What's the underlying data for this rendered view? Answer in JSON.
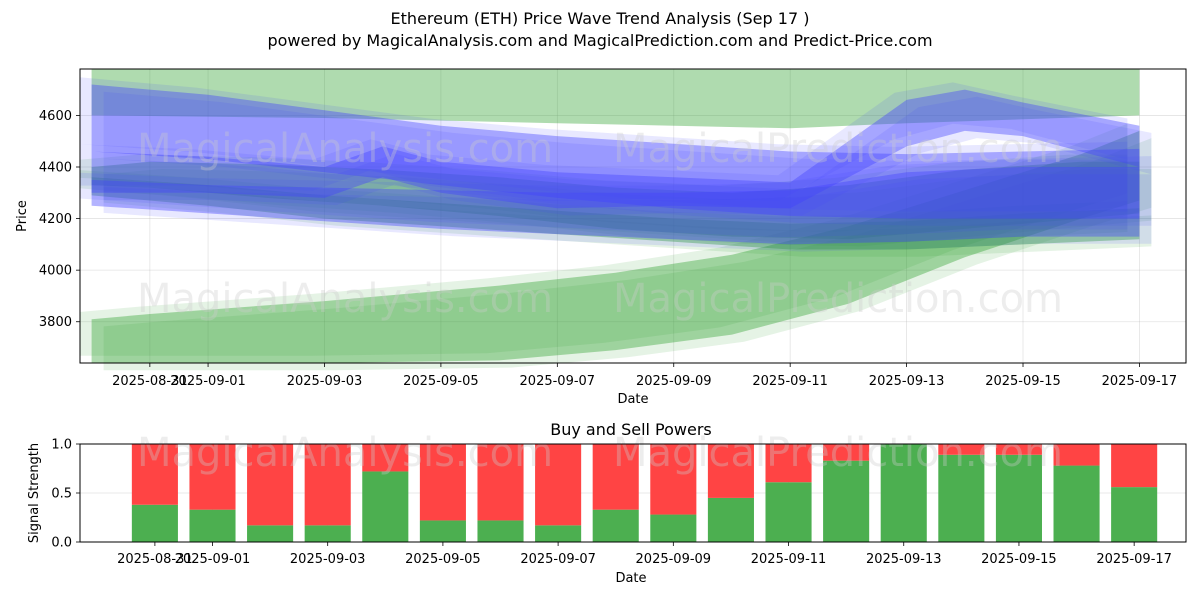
{
  "header": {
    "title": "Ethereum (ETH) Price Wave Trend Analysis (Sep 17 )",
    "subtitle": "powered by MagicalAnalysis.com and MagicalPrediction.com and Predict-Price.com"
  },
  "watermarks": [
    "MagicalAnalysis.com",
    "MagicalPrediction.com"
  ],
  "colors": {
    "green_band": "#2ca02c",
    "blue_band": "#4444ff",
    "buy": "#4caf50",
    "sell": "#ff4444"
  },
  "chart_data": [
    {
      "type": "area",
      "title": "",
      "xlabel": "Date",
      "ylabel": "Price",
      "x_ticks": [
        "2025-08-31",
        "2025-09-01",
        "2025-09-03",
        "2025-09-05",
        "2025-09-07",
        "2025-09-09",
        "2025-09-11",
        "2025-09-13",
        "2025-09-15",
        "2025-09-17"
      ],
      "y_ticks": [
        3800,
        4000,
        4200,
        4400,
        4600
      ],
      "xlim": [
        "2025-08-30",
        "2025-09-17"
      ],
      "ylim": [
        3640,
        4780
      ],
      "grid": true,
      "bands": [
        {
          "color": "green",
          "x": [
            "2025-08-30",
            "2025-09-03",
            "2025-09-07",
            "2025-09-11",
            "2025-09-13",
            "2025-09-17"
          ],
          "upper": [
            4780,
            4780,
            4780,
            4780,
            4780,
            4780
          ],
          "lower": [
            4600,
            4590,
            4570,
            4550,
            4570,
            4600
          ]
        },
        {
          "color": "green",
          "x": [
            "2025-08-30",
            "2025-08-31",
            "2025-09-03",
            "2025-09-06",
            "2025-09-08",
            "2025-09-10",
            "2025-09-12",
            "2025-09-14",
            "2025-09-16",
            "2025-09-17"
          ],
          "upper": [
            3810,
            3830,
            3880,
            3940,
            3990,
            4060,
            4170,
            4310,
            4450,
            4540
          ],
          "lower": [
            3640,
            3640,
            3640,
            3650,
            3690,
            3750,
            3870,
            4050,
            4200,
            4270
          ]
        },
        {
          "color": "green",
          "x": [
            "2025-08-30",
            "2025-08-31",
            "2025-09-02",
            "2025-09-04",
            "2025-09-06",
            "2025-09-08",
            "2025-09-10",
            "2025-09-12",
            "2025-09-14",
            "2025-09-16",
            "2025-09-17"
          ],
          "upper": [
            4400,
            4420,
            4410,
            4390,
            4360,
            4320,
            4300,
            4330,
            4390,
            4420,
            4420
          ],
          "lower": [
            4330,
            4320,
            4280,
            4250,
            4210,
            4160,
            4130,
            4120,
            4160,
            4200,
            4220
          ]
        },
        {
          "color": "green",
          "x": [
            "2025-08-30",
            "2025-09-01",
            "2025-09-03",
            "2025-09-05",
            "2025-09-07",
            "2025-09-09",
            "2025-09-11",
            "2025-09-13",
            "2025-09-15",
            "2025-09-17"
          ],
          "upper": [
            4360,
            4330,
            4290,
            4260,
            4230,
            4200,
            4180,
            4190,
            4220,
            4240
          ],
          "lower": [
            4290,
            4250,
            4200,
            4170,
            4140,
            4110,
            4080,
            4080,
            4100,
            4120
          ]
        },
        {
          "color": "blue",
          "x": [
            "2025-08-30",
            "2025-09-01",
            "2025-09-03",
            "2025-09-05",
            "2025-09-07",
            "2025-09-09",
            "2025-09-11",
            "2025-09-13",
            "2025-09-15",
            "2025-09-17"
          ],
          "upper": [
            4720,
            4680,
            4620,
            4560,
            4520,
            4490,
            4460,
            4450,
            4460,
            4470
          ],
          "lower": [
            4460,
            4430,
            4380,
            4330,
            4280,
            4240,
            4210,
            4200,
            4200,
            4200
          ]
        },
        {
          "color": "blue",
          "x": [
            "2025-08-30",
            "2025-09-01",
            "2025-09-03",
            "2025-09-04",
            "2025-09-05",
            "2025-09-07",
            "2025-09-09",
            "2025-09-11",
            "2025-09-13",
            "2025-09-14",
            "2025-09-15",
            "2025-09-17"
          ],
          "upper": [
            4460,
            4440,
            4400,
            4480,
            4420,
            4380,
            4360,
            4340,
            4660,
            4700,
            4650,
            4560
          ],
          "lower": [
            4300,
            4300,
            4280,
            4360,
            4300,
            4240,
            4250,
            4240,
            4480,
            4540,
            4520,
            4400
          ]
        },
        {
          "color": "blue",
          "x": [
            "2025-08-30",
            "2025-09-01",
            "2025-09-03",
            "2025-09-05",
            "2025-09-07",
            "2025-09-09",
            "2025-09-11",
            "2025-09-13",
            "2025-09-15",
            "2025-09-17"
          ],
          "upper": [
            4350,
            4330,
            4320,
            4310,
            4300,
            4300,
            4310,
            4380,
            4400,
            4400
          ],
          "lower": [
            4250,
            4220,
            4190,
            4160,
            4140,
            4120,
            4100,
            4110,
            4130,
            4130
          ]
        }
      ]
    },
    {
      "type": "bar",
      "title": "Buy and Sell Powers",
      "xlabel": "Date",
      "ylabel": "Signal Strength",
      "x_ticks": [
        "2025-08-31",
        "2025-09-01",
        "2025-09-03",
        "2025-09-05",
        "2025-09-07",
        "2025-09-09",
        "2025-09-11",
        "2025-09-13",
        "2025-09-15",
        "2025-09-17"
      ],
      "y_ticks": [
        0.0,
        0.5,
        1.0
      ],
      "ylim": [
        0,
        1
      ],
      "grid": true,
      "categories": [
        "2025-08-31",
        "2025-09-01",
        "2025-09-02",
        "2025-09-03",
        "2025-09-04",
        "2025-09-05",
        "2025-09-06",
        "2025-09-07",
        "2025-09-08",
        "2025-09-09",
        "2025-09-10",
        "2025-09-11",
        "2025-09-12",
        "2025-09-13",
        "2025-09-14",
        "2025-09-15",
        "2025-09-16",
        "2025-09-17"
      ],
      "series": [
        {
          "name": "",
          "color": "green",
          "values": [
            0.38,
            0.33,
            0.17,
            0.17,
            0.72,
            0.22,
            0.22,
            0.17,
            0.33,
            0.28,
            0.45,
            0.61,
            0.83,
            1.0,
            0.89,
            0.89,
            0.78,
            0.56
          ]
        },
        {
          "name": "",
          "color": "red",
          "values": [
            0.62,
            0.67,
            0.83,
            0.83,
            0.28,
            0.78,
            0.78,
            0.83,
            0.67,
            0.72,
            0.55,
            0.39,
            0.17,
            0.0,
            0.11,
            0.11,
            0.22,
            0.44
          ]
        }
      ]
    }
  ]
}
